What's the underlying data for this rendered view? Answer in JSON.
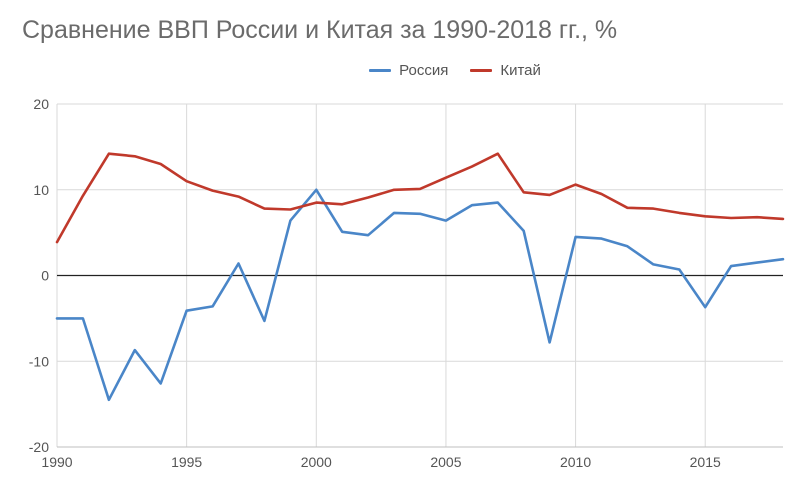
{
  "chart_data": {
    "type": "line",
    "title": "Сравнение ВВП России и Китая за 1990-2018 гг., %",
    "xlabel": "",
    "ylabel": "",
    "xlim": [
      1990,
      2018
    ],
    "ylim": [
      -20,
      20
    ],
    "x_ticks": [
      "1990",
      "1995",
      "2000",
      "2005",
      "2010",
      "2015"
    ],
    "y_ticks": [
      "20",
      "10",
      "0",
      "-10",
      "-20"
    ],
    "grid": true,
    "legend_position": "top",
    "x": [
      1990,
      1991,
      1992,
      1993,
      1994,
      1995,
      1996,
      1997,
      1998,
      1999,
      2000,
      2001,
      2002,
      2003,
      2004,
      2005,
      2006,
      2007,
      2008,
      2009,
      2010,
      2011,
      2012,
      2013,
      2014,
      2015,
      2016,
      2017,
      2018
    ],
    "series": [
      {
        "name": "Россия",
        "color": "#4a86c8",
        "values": [
          -5.0,
          -5.0,
          -14.5,
          -8.7,
          -12.6,
          -4.1,
          -3.6,
          1.4,
          -5.3,
          6.4,
          10.0,
          5.1,
          4.7,
          7.3,
          7.2,
          6.4,
          8.2,
          8.5,
          5.2,
          -7.8,
          4.5,
          4.3,
          3.4,
          1.3,
          0.7,
          -3.7,
          1.1,
          1.5,
          1.9
        ]
      },
      {
        "name": "Китай",
        "color": "#c0392b",
        "values": [
          3.9,
          9.3,
          14.2,
          13.9,
          13.0,
          11.0,
          9.9,
          9.2,
          7.8,
          7.7,
          8.5,
          8.3,
          9.1,
          10.0,
          10.1,
          11.4,
          12.7,
          14.2,
          9.7,
          9.4,
          10.6,
          9.5,
          7.9,
          7.8,
          7.3,
          6.9,
          6.7,
          6.8,
          6.6
        ]
      }
    ]
  }
}
